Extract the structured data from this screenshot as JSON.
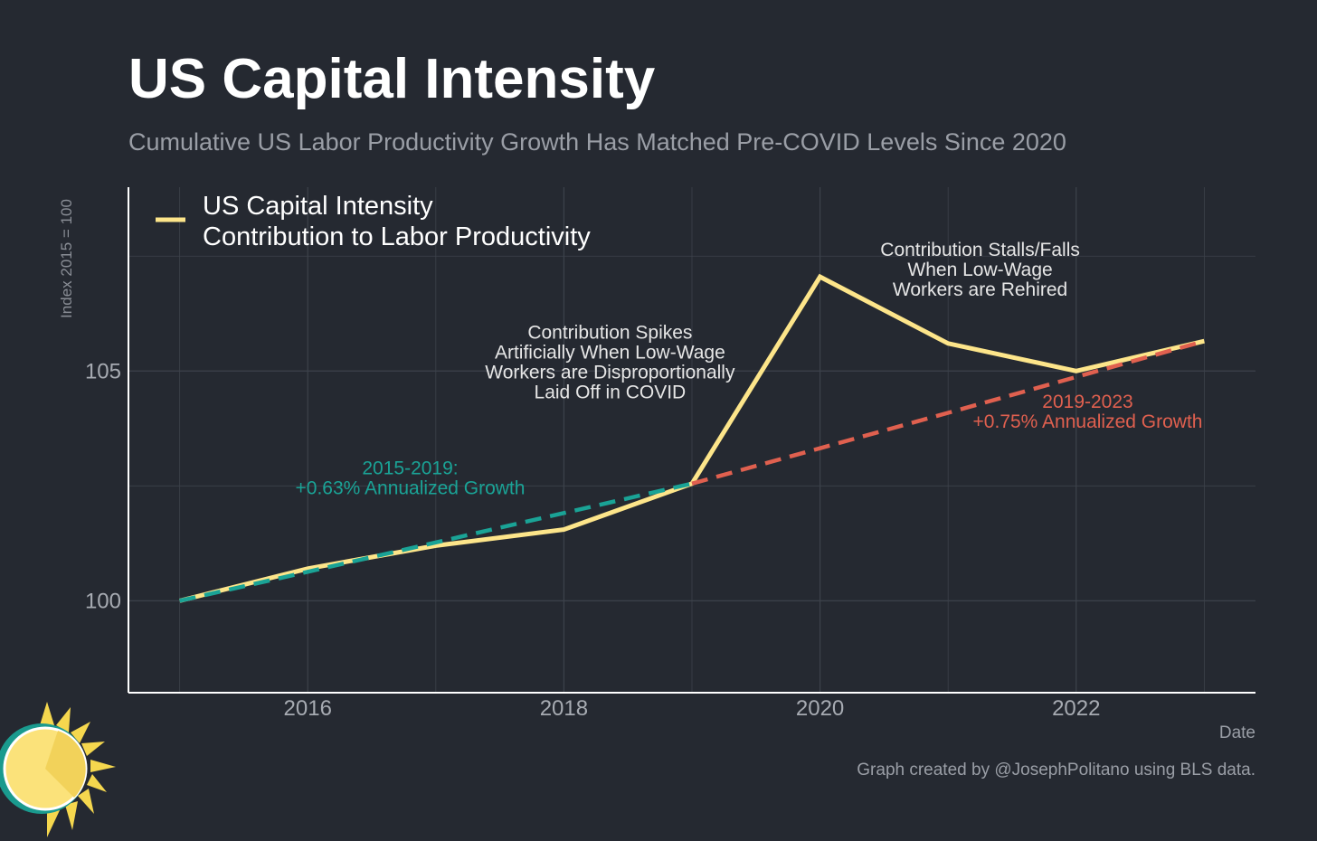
{
  "title": "US Capital Intensity",
  "subtitle": "Cumulative US Labor Productivity Growth Has Matched Pre-COVID Levels Since 2020",
  "caption": "Graph created by @JosephPolitano using BLS data.",
  "colors": {
    "background": "#252931",
    "series": "#fde58a",
    "trend_pre": "#1aa396",
    "trend_post": "#e0604f",
    "grid": "#3d424b",
    "axis": "#ffffff"
  },
  "chart_data": {
    "type": "line",
    "xlabel": "Date",
    "ylabel": "Index 2015 = 100",
    "xlim": [
      2014.6,
      2023.4
    ],
    "ylim": [
      98.0,
      109.0
    ],
    "x_ticks": [
      2016,
      2018,
      2020,
      2022
    ],
    "x_tick_labels": [
      "2016",
      "2018",
      "2020",
      "2022"
    ],
    "y_ticks": [
      100,
      105
    ],
    "y_tick_labels": [
      "100",
      "105"
    ],
    "grid": true,
    "legend": {
      "position": "top-left",
      "entries": [
        "US Capital Intensity",
        "Contribution to Labor Productivity"
      ]
    },
    "series": [
      {
        "name": "US Capital Intensity Contribution to Labor Productivity",
        "style": "solid",
        "x": [
          2015,
          2016,
          2017,
          2018,
          2019,
          2020,
          2021,
          2022,
          2023
        ],
        "y": [
          100.0,
          100.7,
          101.2,
          101.55,
          102.55,
          107.05,
          105.6,
          105.0,
          105.65
        ]
      },
      {
        "name": "2015-2019 trend",
        "style": "dashed",
        "x": [
          2015,
          2016,
          2017,
          2018,
          2019
        ],
        "y": [
          100.0,
          100.63,
          101.27,
          101.91,
          102.55
        ]
      },
      {
        "name": "2019-2023 trend",
        "style": "dashed",
        "x": [
          2019,
          2020,
          2021,
          2022,
          2023
        ],
        "y": [
          102.55,
          103.32,
          104.09,
          104.87,
          105.65
        ]
      }
    ],
    "annotations": [
      {
        "lines": [
          "Contribution Stalls/Falls",
          "When Low-Wage",
          "Workers are Rehired"
        ],
        "x": 2021.25,
        "y": 107.5,
        "color": "white"
      },
      {
        "lines": [
          "Contribution Spikes",
          "Artificially When Low-Wage",
          "Workers are Disproportionally",
          "Laid Off in COVID"
        ],
        "x": 2018.36,
        "y": 105.7,
        "color": "white"
      },
      {
        "lines": [
          "2015-2019:",
          "+0.63% Annualized Growth"
        ],
        "x": 2016.8,
        "y": 102.75,
        "color": "teal"
      },
      {
        "lines": [
          "2019-2023",
          "+0.75% Annualized Growth"
        ],
        "x": 2022.09,
        "y": 104.2,
        "color": "red"
      }
    ]
  }
}
